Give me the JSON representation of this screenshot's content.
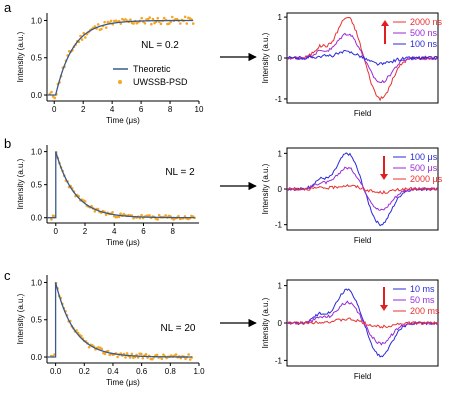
{
  "figure": {
    "colors": {
      "axis": "#000000",
      "fit": "#3a5a8c",
      "data": "#f5a623",
      "red": "#e83030",
      "purple": "#9a2bd6",
      "blue": "#2a2ad6"
    },
    "arrow_marker": "right-arrow"
  },
  "chart_data": [
    {
      "panel": "a",
      "type": "scatter",
      "xlabel": "Time (μs)",
      "ylabel": "Intensity (a.u.)",
      "xlim": [
        -0.5,
        10
      ],
      "ylim": [
        -0.08,
        1.1
      ],
      "xticks": [
        0,
        2,
        4,
        6,
        8,
        10
      ],
      "yticks": [
        0.0,
        0.5,
        1.0
      ],
      "annotation": "NL = 0.2",
      "legend": {
        "placement": "bottom-right",
        "entries": [
          {
            "label": "Theoretic",
            "kind": "line",
            "color": "#3a5a8c"
          },
          {
            "label": "UWSSB-PSD",
            "kind": "dot",
            "color": "#f5a623"
          }
        ]
      },
      "fit": {
        "name": "Theoretic",
        "model": "rise",
        "t0": 0.1,
        "tau": 1.2
      },
      "scatter": {
        "name": "UWSSB-PSD",
        "x_range": [
          -0.3,
          9.6
        ],
        "n": 90
      }
    },
    {
      "panel": "a-spectra",
      "type": "line",
      "xlabel": "Field",
      "ylabel": "Intensity (a.u.)",
      "ylim": [
        -1.1,
        1.1
      ],
      "yticks": [
        -1,
        0,
        1
      ],
      "series": [
        {
          "name": "2000 ns",
          "color": "#e83030",
          "amplitude": 1.0
        },
        {
          "name": "500 ns",
          "color": "#9a2bd6",
          "amplitude": 0.6
        },
        {
          "name": "100 ns",
          "color": "#2a2ad6",
          "amplitude": 0.15
        }
      ],
      "arrow_direction": "up"
    },
    {
      "panel": "b",
      "type": "scatter",
      "xlabel": "Time (μs)",
      "ylabel": "Intensity (a.u.)",
      "xlim": [
        -0.6,
        9.8
      ],
      "ylim": [
        -0.08,
        1.1
      ],
      "xticks": [
        0,
        2,
        4,
        6,
        8
      ],
      "yticks": [
        0.0,
        0.5,
        1.0
      ],
      "annotation": "NL = 2",
      "fit": {
        "name": "Theoretic",
        "model": "decay",
        "t0": 0,
        "tau": 1.3
      },
      "scatter": {
        "name": "UWSSB-PSD",
        "x_range": [
          -0.3,
          9.5
        ],
        "n": 90
      }
    },
    {
      "panel": "b-spectra",
      "type": "line",
      "xlabel": "Field",
      "ylabel": "Intensity (a.u.)",
      "ylim": [
        -1.15,
        1.15
      ],
      "yticks": [
        -1,
        0,
        1
      ],
      "series": [
        {
          "name": "100 μs",
          "color": "#2a2ad6",
          "amplitude": 1.0
        },
        {
          "name": "500 μs",
          "color": "#9a2bd6",
          "amplitude": 0.6
        },
        {
          "name": "2000 μs",
          "color": "#e83030",
          "amplitude": 0.1
        }
      ],
      "arrow_direction": "down"
    },
    {
      "panel": "c",
      "type": "scatter",
      "xlabel": "Time (μs)",
      "ylabel": "Intensity (a.u.)",
      "xlim": [
        -0.06,
        1.0
      ],
      "ylim": [
        -0.08,
        1.1
      ],
      "xticks": [
        0.0,
        0.2,
        0.4,
        0.6,
        0.8,
        1.0
      ],
      "yticks": [
        0.0,
        0.5,
        1.0
      ],
      "annotation": "NL = 20",
      "fit": {
        "name": "Theoretic",
        "model": "decay",
        "t0": 0,
        "tau": 0.13
      },
      "scatter": {
        "name": "UWSSB-PSD",
        "x_range": [
          -0.03,
          0.95
        ],
        "n": 90
      }
    },
    {
      "panel": "c-spectra",
      "type": "line",
      "xlabel": "Field",
      "ylabel": "Intensity (a.u.)",
      "ylim": [
        -1.15,
        1.15
      ],
      "yticks": [
        -1,
        0,
        1
      ],
      "series": [
        {
          "name": "10 ms",
          "color": "#2a2ad6",
          "amplitude": 0.9
        },
        {
          "name": "50 ms",
          "color": "#9a2bd6",
          "amplitude": 0.55
        },
        {
          "name": "200 ms",
          "color": "#e83030",
          "amplitude": 0.1
        }
      ],
      "arrow_direction": "down"
    }
  ]
}
